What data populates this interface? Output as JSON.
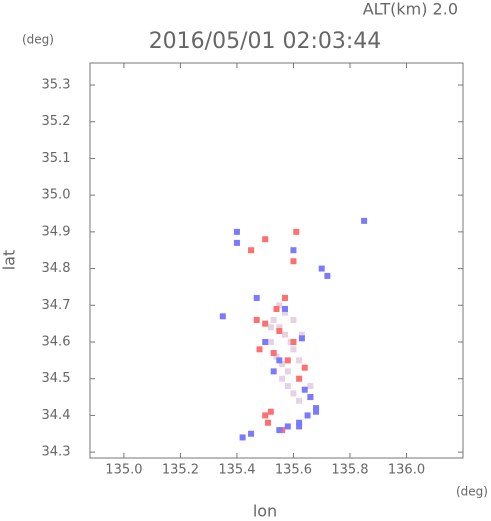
{
  "chart_data": {
    "type": "scatter",
    "title": "2016/05/01 02:03:44",
    "subtitle": "ALT(km) 2.0",
    "x_label": "lon",
    "y_label": "lat",
    "x_unit": "(deg)",
    "y_unit": "(deg)",
    "xlim": [
      134.88,
      136.2
    ],
    "ylim": [
      34.284,
      35.36
    ],
    "xticks": [
      {
        "value": 135.0,
        "label": "135.0"
      },
      135.2,
      135.4,
      135.6,
      135.8,
      {
        "value": 136.0,
        "label": "136.0"
      }
    ],
    "yticks": [
      34.3,
      34.4,
      34.5,
      34.6,
      34.7,
      34.8,
      34.9,
      {
        "value": 35.0,
        "label": "35.0"
      },
      35.1,
      35.2,
      35.3
    ],
    "series": [
      {
        "color": "#e6d2e2",
        "x": [
          135.53,
          135.55,
          135.57,
          135.59,
          135.6,
          135.52,
          135.54,
          135.56,
          135.58,
          135.62,
          135.55,
          135.57,
          135.6,
          135.63,
          135.58,
          135.6,
          135.62,
          135.56,
          135.52,
          135.66
        ],
        "y": [
          34.66,
          34.64,
          34.62,
          34.6,
          34.58,
          34.6,
          34.56,
          34.54,
          34.52,
          34.55,
          34.7,
          34.68,
          34.66,
          34.62,
          34.48,
          34.46,
          34.44,
          34.5,
          34.64,
          34.48
        ]
      },
      {
        "color": "#ff6f6f",
        "x": [
          135.5,
          135.52,
          135.55,
          135.6,
          135.5,
          135.45,
          135.61,
          135.48,
          135.62,
          135.58,
          135.53,
          135.64,
          135.57,
          135.47,
          135.66,
          135.51,
          135.56,
          135.54,
          135.6,
          135.5
        ],
        "y": [
          34.4,
          34.41,
          34.63,
          34.6,
          34.65,
          34.85,
          34.9,
          34.58,
          34.5,
          34.55,
          34.57,
          34.53,
          34.72,
          34.66,
          34.45,
          34.38,
          34.36,
          34.69,
          34.82,
          34.88
        ]
      },
      {
        "color": "#7a7aff",
        "x": [
          135.65,
          135.62,
          135.68,
          135.55,
          135.45,
          135.42,
          135.58,
          135.85,
          135.35,
          135.4,
          135.66,
          135.64,
          135.7,
          135.6,
          135.5,
          135.55,
          135.63,
          135.72,
          135.47,
          135.53,
          135.4,
          135.68,
          135.57,
          135.62
        ],
        "y": [
          34.4,
          34.38,
          34.42,
          34.36,
          34.35,
          34.34,
          34.37,
          34.93,
          34.67,
          34.9,
          34.45,
          34.47,
          34.8,
          34.85,
          34.6,
          34.55,
          34.61,
          34.78,
          34.72,
          34.52,
          34.87,
          34.41,
          34.69,
          34.37
        ]
      }
    ]
  }
}
